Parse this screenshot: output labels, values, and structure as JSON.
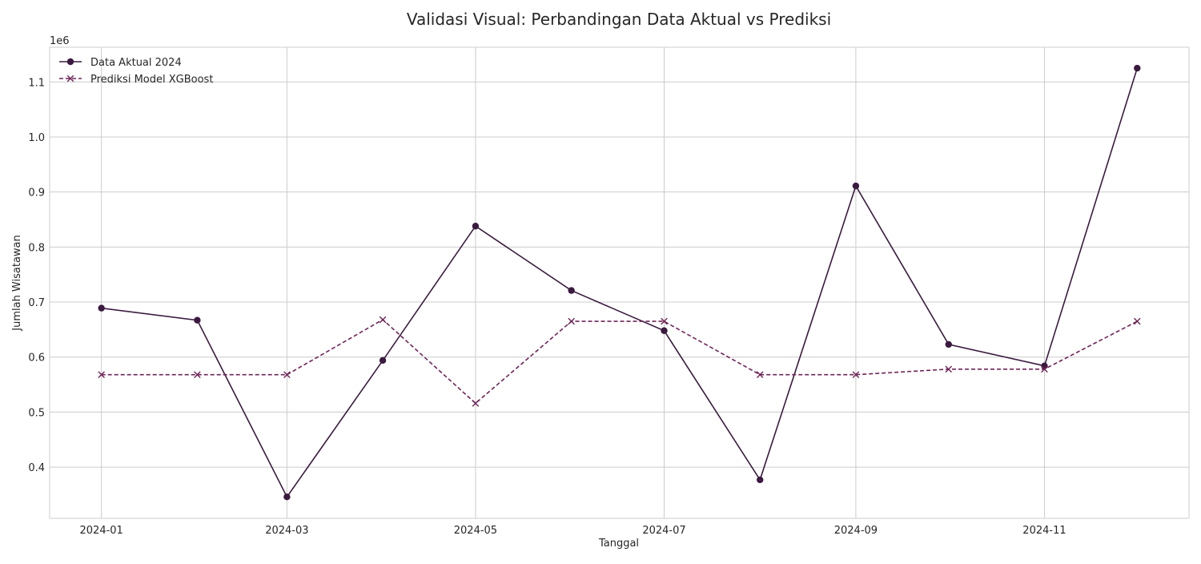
{
  "chart_data": {
    "type": "line",
    "title": "Validasi Visual: Perbandingan Data Aktual vs Prediksi",
    "xlabel": "Tanggal",
    "ylabel": "Jumlah Wisatawan",
    "y_offset_label": "1e6",
    "x": [
      "2024-01-01",
      "2024-02-01",
      "2024-03-01",
      "2024-04-01",
      "2024-05-01",
      "2024-06-01",
      "2024-07-01",
      "2024-08-01",
      "2024-09-01",
      "2024-10-01",
      "2024-11-01",
      "2024-12-01"
    ],
    "x_ticks": [
      "2024-01",
      "2024-03",
      "2024-05",
      "2024-07",
      "2024-09",
      "2024-11"
    ],
    "y_ticks": [
      "0.4",
      "0.5",
      "0.6",
      "0.7",
      "0.8",
      "0.9",
      "1.0",
      "1.1"
    ],
    "ylim": [
      0.307,
      1.163
    ],
    "series": [
      {
        "name": "Data Aktual 2024",
        "values": [
          0.689,
          0.667,
          0.346,
          0.594,
          0.838,
          0.721,
          0.648,
          0.377,
          0.911,
          0.623,
          0.584,
          1.125
        ],
        "color": "#3b1a40",
        "style": "solid",
        "marker": "circle"
      },
      {
        "name": "Prediksi Model XGBoost",
        "values": [
          0.568,
          0.568,
          0.568,
          0.668,
          0.516,
          0.665,
          0.665,
          0.568,
          0.568,
          0.578,
          0.578,
          0.665
        ],
        "color": "#6e2458",
        "style": "dashed",
        "marker": "x"
      }
    ],
    "grid": true,
    "legend_position": "top-left"
  }
}
